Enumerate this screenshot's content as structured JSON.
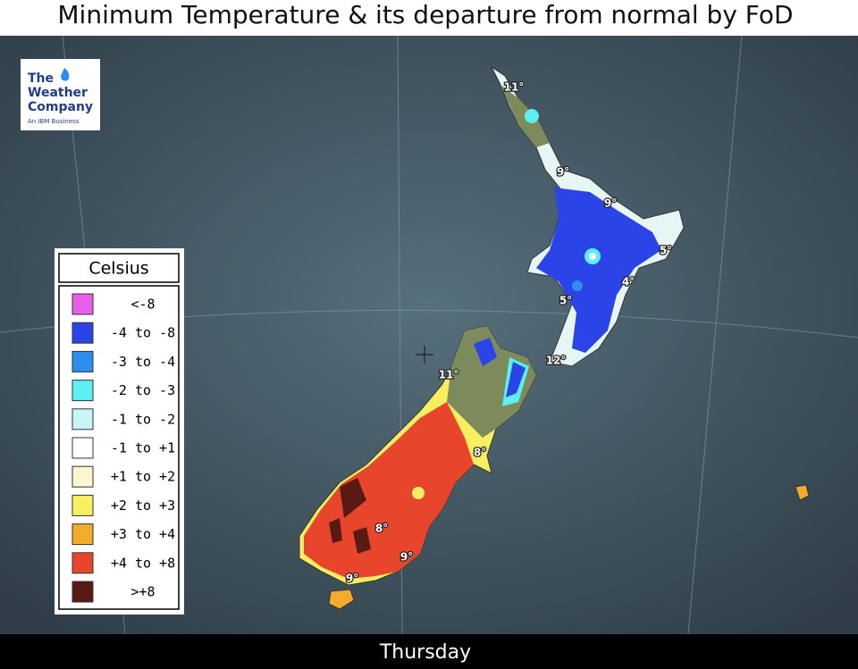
{
  "header": {
    "title": "Minimum Temperature & its departure from normal by FoD"
  },
  "logo": {
    "line1": "The",
    "line2": "Weather",
    "line3": "Company",
    "line4": "An IBM Business"
  },
  "legend": {
    "title": "Celsius",
    "items": [
      {
        "label": "<-8",
        "color": "#e95ee9"
      },
      {
        "label": "-4  to  -8",
        "color": "#2a44e8"
      },
      {
        "label": "-3  to  -4",
        "color": "#2e8ef0"
      },
      {
        "label": "-2  to  -3",
        "color": "#5cf0f5"
      },
      {
        "label": "-1  to  -2",
        "color": "#c8f6f6"
      },
      {
        "label": "-1  to  +1",
        "color": "#ffffff"
      },
      {
        "label": "+1  to  +2",
        "color": "#fbf6cf"
      },
      {
        "label": "+2  to  +3",
        "color": "#f7ef60"
      },
      {
        "label": "+3  to  +4",
        "color": "#f4aa2c"
      },
      {
        "label": "+4  to  +8",
        "color": "#e8462c"
      },
      {
        "label": ">+8",
        "color": "#5a1a14"
      }
    ]
  },
  "map_labels": [
    "11°",
    "9°",
    "9°",
    "5°",
    "4°",
    "5°",
    "12°",
    "11°",
    "8°",
    "8°",
    "9°",
    "9°"
  ],
  "footer": {
    "day": "Thursday"
  }
}
